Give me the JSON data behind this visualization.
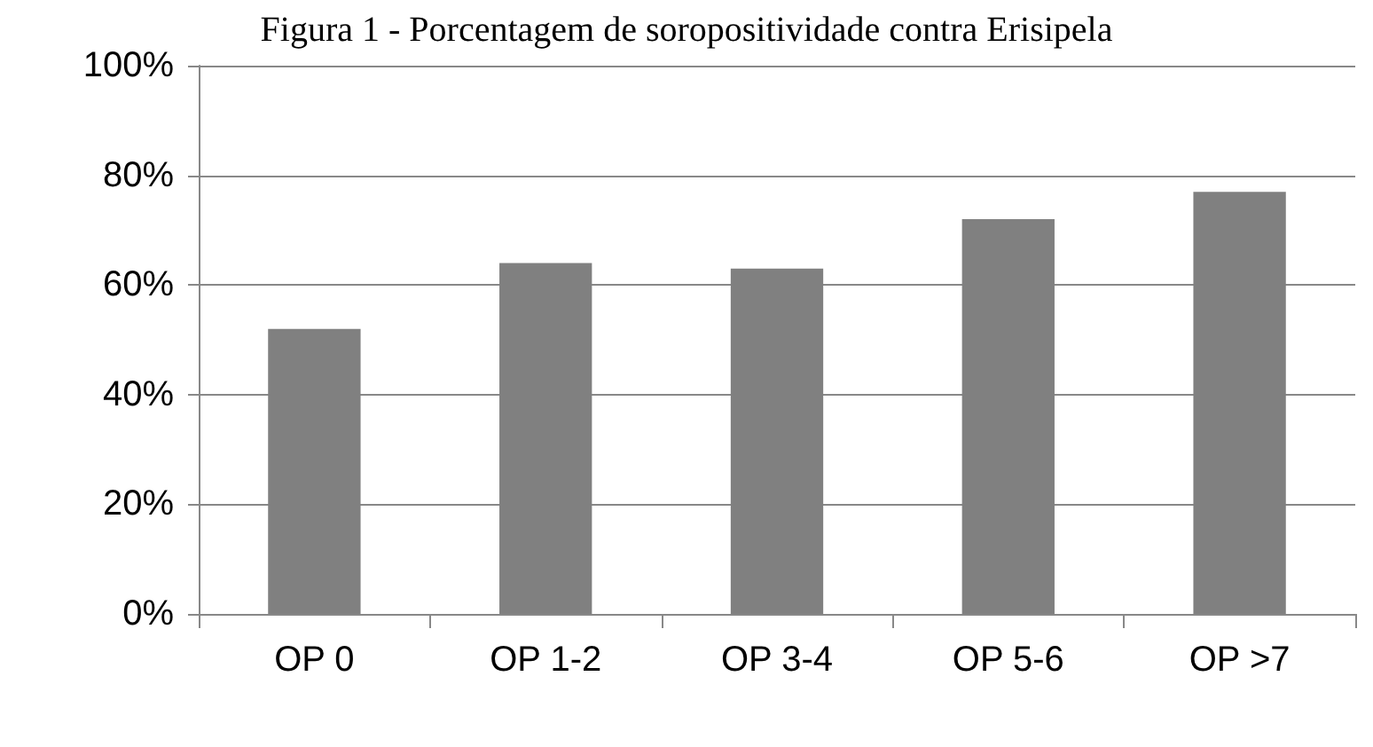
{
  "chart_data": {
    "type": "bar",
    "title": "Figura 1 - Porcentagem de soropositividade contra Erisipela",
    "categories": [
      "OP 0",
      "OP 1-2",
      "OP 3-4",
      "OP 5-6",
      "OP >7"
    ],
    "values": [
      52,
      64,
      63,
      72,
      77
    ],
    "color": "#808080",
    "ylim": [
      0,
      100
    ],
    "yticks": [
      {
        "value": 0,
        "label": "0%"
      },
      {
        "value": 20,
        "label": "20%"
      },
      {
        "value": 40,
        "label": "40%"
      },
      {
        "value": 60,
        "label": "60%"
      },
      {
        "value": 80,
        "label": "80%"
      },
      {
        "value": 100,
        "label": "100%"
      }
    ],
    "grid": "y"
  }
}
